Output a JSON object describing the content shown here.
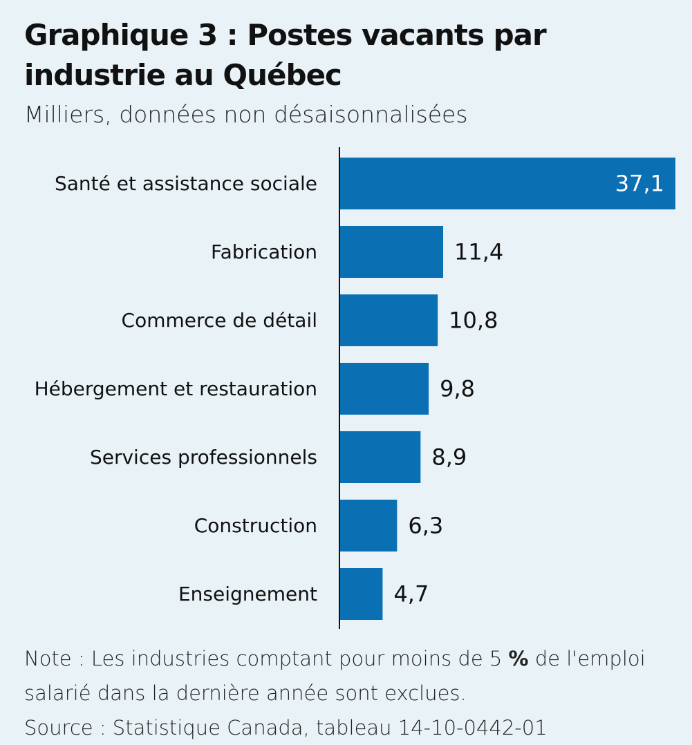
{
  "title": "Graphique 3 : Postes vacants par industrie au Québec",
  "subtitle": "Milliers, données non désaisonnalisées",
  "note": {
    "prefix": "Note : Les industries comptant pour moins de 5 ",
    "percent": "%",
    "suffix": " de l'emploi salarié dans la dernière année sont exclues."
  },
  "source": "Source : Statistique Canada, tableau 14-10-0442-01",
  "colors": {
    "bar": "#0b6fb3",
    "axis": "#111111",
    "inside_label": "#ffffff",
    "outside_label": "#111111",
    "background": "#e9f2f6"
  },
  "chart_data": {
    "type": "bar",
    "orientation": "horizontal",
    "title": "Graphique 3 : Postes vacants par industrie au Québec",
    "subtitle": "Milliers, données non désaisonnalisées",
    "categories": [
      "Santé et assistance sociale",
      "Fabrication",
      "Commerce de détail",
      "Hébergement et restauration",
      "Services professionnels",
      "Construction",
      "Enseignement"
    ],
    "values": [
      37.1,
      11.4,
      10.8,
      9.8,
      8.9,
      6.3,
      4.7
    ],
    "value_labels": [
      "37,1",
      "11,4",
      "10,8",
      "9,8",
      "8,9",
      "6,3",
      "4,7"
    ],
    "xlim": [
      0,
      37.1
    ],
    "grid": false,
    "legend": "none"
  }
}
